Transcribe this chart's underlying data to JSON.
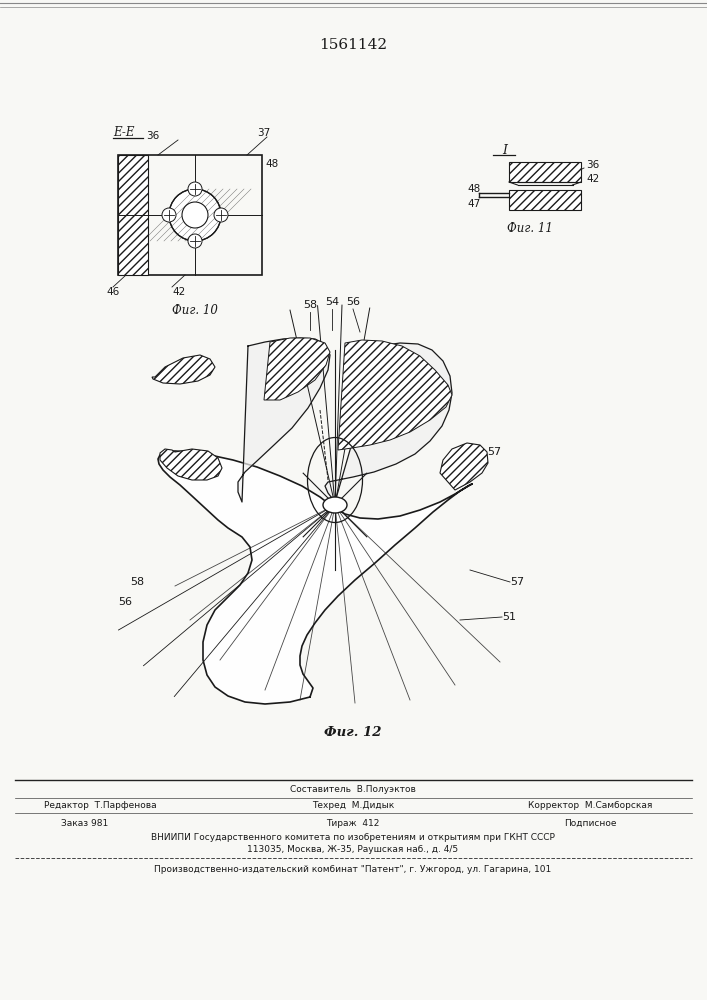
{
  "title_number": "1561142",
  "bg_color": "#f8f8f5",
  "line_color": "#1a1a1a",
  "fig10_label": "Фиг. 10",
  "fig11_label": "Фиг. 11",
  "fig12_label": "Фиг. 12",
  "footer_line1": "Составитель  В.Полуэктов",
  "footer_line2_left": "Редактор  Т.Парфенова",
  "footer_line2_mid": "Техред  М.Дидык",
  "footer_line2_right": "Корректор  М.Самборская",
  "footer_line3_left": "Заказ 981",
  "footer_line3_mid": "Тираж  412",
  "footer_line3_right": "Подписное",
  "footer_line4": "ВНИИПИ Государственного комитета по изобретениям и открытиям при ГКНТ СССР",
  "footer_line5": "113035, Москва, Ж-35, Раушская наб., д. 4/5",
  "footer_line6": "Производственно-издательский комбинат \"Патент\", г. Ужгород, ул. Гагарина, 101"
}
